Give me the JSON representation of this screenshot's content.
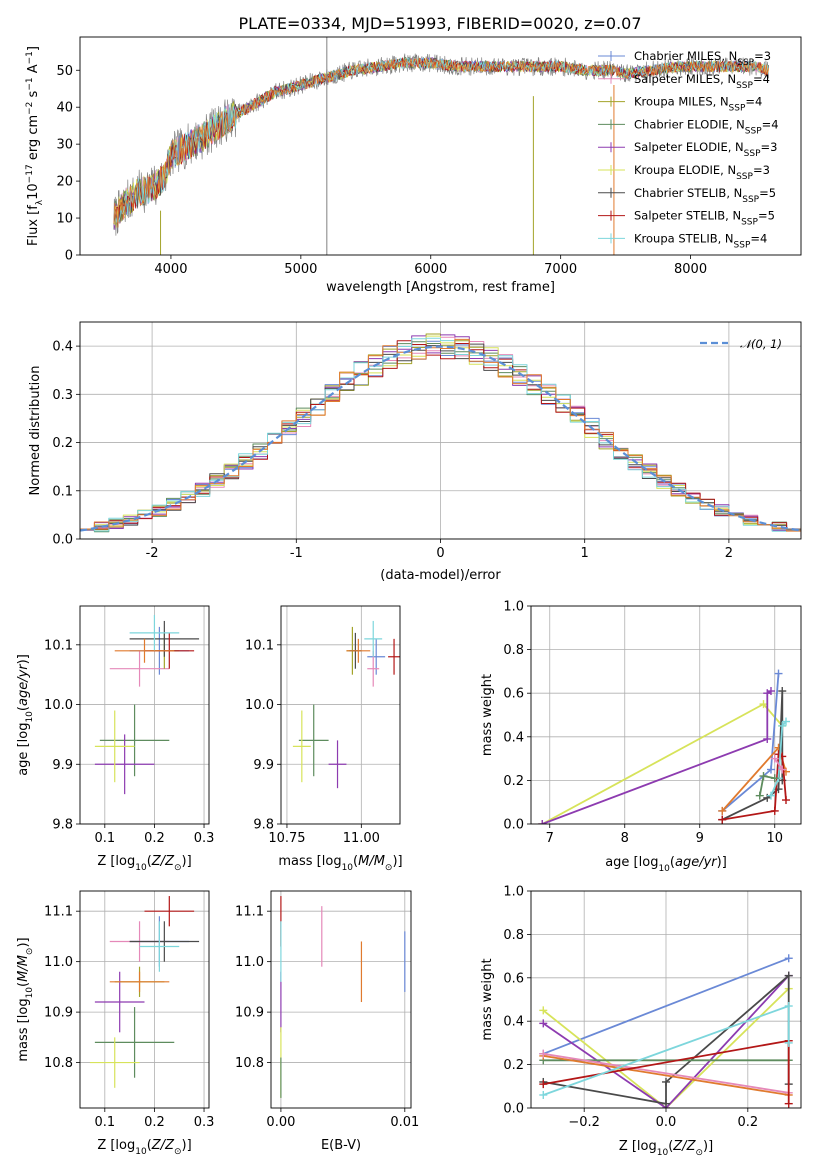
{
  "figure": {
    "title": "PLATE=0334, MJD=51993, FIBERID=0020, z=0.07"
  },
  "colors": {
    "chabrier_miles": "#6a89d6",
    "salpeter_miles": "#e589b9",
    "kroupa_miles": "#a3a32a",
    "chabrier_elodie": "#5e8c5e",
    "salpeter_elodie": "#8d3bb0",
    "kroupa_elodie": "#d7e35a",
    "chabrier_stelib": "#4a4a4a",
    "salpeter_stelib": "#b31717",
    "kroupa_stelib": "#7dd6dc",
    "normal_curve": "#5b8fd6",
    "orange_series": "#e07a2e",
    "grid": "#b0b0b0"
  },
  "chart_data": [
    {
      "id": "spectrum",
      "type": "line",
      "xlabel": "wavelength [Angstrom, rest frame]",
      "ylabel": "Flux [f_λ 10^-17 erg cm^-2 s^-1 A^-1]",
      "xlim": [
        3300,
        8850
      ],
      "ylim": [
        0,
        59
      ],
      "xticks": [
        4000,
        5000,
        6000,
        7000,
        8000
      ],
      "yticks": [
        0,
        10,
        20,
        30,
        40,
        50
      ],
      "grid": false,
      "legend_position": "top-right",
      "series": [
        {
          "name": "Chabrier MILES, N_SSP=3",
          "color": "#6a89d6"
        },
        {
          "name": "Salpeter MILES, N_SSP=4",
          "color": "#e589b9"
        },
        {
          "name": "Kroupa MILES, N_SSP=4",
          "color": "#a3a32a"
        },
        {
          "name": "Chabrier ELODIE, N_SSP=4",
          "color": "#5e8c5e"
        },
        {
          "name": "Salpeter ELODIE, N_SSP=3",
          "color": "#8d3bb0"
        },
        {
          "name": "Kroupa ELODIE, N_SSP=3",
          "color": "#d7e35a"
        },
        {
          "name": "Chabrier STELIB, N_SSP=5",
          "color": "#4a4a4a"
        },
        {
          "name": "Salpeter STELIB, N_SSP=5",
          "color": "#b31717"
        },
        {
          "name": "Kroupa STELIB, N_SSP=4",
          "color": "#7dd6dc"
        }
      ],
      "continuum": [
        [
          3560,
          10
        ],
        [
          3650,
          14
        ],
        [
          3750,
          17
        ],
        [
          3850,
          18
        ],
        [
          3950,
          21
        ],
        [
          4000,
          27
        ],
        [
          4100,
          29
        ],
        [
          4250,
          32
        ],
        [
          4400,
          36
        ],
        [
          4600,
          40
        ],
        [
          4800,
          44
        ],
        [
          5000,
          46
        ],
        [
          5200,
          48
        ],
        [
          5400,
          50
        ],
        [
          5600,
          51
        ],
        [
          5800,
          52
        ],
        [
          6000,
          52
        ],
        [
          6200,
          51
        ],
        [
          6400,
          51
        ],
        [
          6600,
          51
        ],
        [
          6800,
          51
        ],
        [
          7000,
          51
        ],
        [
          7200,
          50
        ],
        [
          7400,
          50
        ],
        [
          7500,
          49
        ],
        [
          7700,
          50
        ],
        [
          7900,
          51
        ],
        [
          8100,
          51
        ],
        [
          8300,
          51
        ],
        [
          8500,
          51
        ],
        [
          8600,
          50
        ]
      ],
      "artifacts": [
        [
          5200,
          0,
          59
        ],
        [
          6790,
          0,
          43
        ],
        [
          7410,
          0,
          46
        ],
        [
          3920,
          0,
          12
        ]
      ]
    },
    {
      "id": "residuals",
      "type": "line",
      "xlabel": "(data-model)/error",
      "ylabel": "Normed distribution",
      "xlim": [
        -2.5,
        2.5
      ],
      "ylim": [
        0,
        0.45
      ],
      "xticks": [
        -2,
        -1,
        0,
        1,
        2
      ],
      "yticks": [
        0.0,
        0.1,
        0.2,
        0.3,
        0.4
      ],
      "grid": true,
      "legend_position": "top-right",
      "normal_label": "𝒩(0, 1)",
      "bin_width": 0.1
    },
    {
      "id": "age_vs_Z",
      "type": "scatter",
      "xlabel": "Z [log10(Z/Z⊙)]",
      "ylabel": "age [log10(age/yr)]",
      "xlim": [
        0.05,
        0.31
      ],
      "ylim": [
        9.8,
        10.165
      ],
      "xticks": [
        0.1,
        0.2,
        0.3
      ],
      "yticks": [
        9.8,
        9.9,
        10.0,
        10.1
      ],
      "grid": true,
      "points": [
        {
          "x": 0.21,
          "y": 10.09,
          "xerr": 0.06,
          "yerr": 0.04,
          "color": "#6a89d6"
        },
        {
          "x": 0.17,
          "y": 10.06,
          "xerr": 0.06,
          "yerr": 0.03,
          "color": "#e589b9"
        },
        {
          "x": 0.22,
          "y": 10.09,
          "xerr": 0.03,
          "yerr": 0.03,
          "color": "#a3a32a"
        },
        {
          "x": 0.16,
          "y": 9.94,
          "xerr": 0.07,
          "yerr": 0.06,
          "color": "#5e8c5e"
        },
        {
          "x": 0.14,
          "y": 9.9,
          "xerr": 0.06,
          "yerr": 0.05,
          "color": "#8d3bb0"
        },
        {
          "x": 0.12,
          "y": 9.93,
          "xerr": 0.04,
          "yerr": 0.06,
          "color": "#d7e35a"
        },
        {
          "x": 0.22,
          "y": 10.11,
          "xerr": 0.07,
          "yerr": 0.03,
          "color": "#4a4a4a"
        },
        {
          "x": 0.23,
          "y": 10.09,
          "xerr": 0.05,
          "yerr": 0.03,
          "color": "#b31717"
        },
        {
          "x": 0.2,
          "y": 10.12,
          "xerr": 0.05,
          "yerr": 0.03,
          "color": "#7dd6dc"
        },
        {
          "x": 0.18,
          "y": 10.09,
          "xerr": 0.06,
          "yerr": 0.02,
          "color": "#e07a2e"
        }
      ]
    },
    {
      "id": "age_vs_mass",
      "type": "scatter",
      "xlabel": "mass [log10(M/M⊙)]",
      "ylabel": "",
      "xlim": [
        10.73,
        11.13
      ],
      "ylim": [
        9.8,
        10.165
      ],
      "xticks": [
        10.75,
        11.0
      ],
      "xticklabels": [
        "10.75",
        "11.00"
      ],
      "yticks": [
        9.8,
        9.9,
        10.0,
        10.1
      ],
      "grid": true,
      "points": [
        {
          "x": 11.05,
          "y": 10.08,
          "xerr": 0.03,
          "yerr": 0.03,
          "color": "#6a89d6"
        },
        {
          "x": 11.04,
          "y": 10.06,
          "xerr": 0.02,
          "yerr": 0.03,
          "color": "#e589b9"
        },
        {
          "x": 10.97,
          "y": 10.09,
          "xerr": 0.02,
          "yerr": 0.04,
          "color": "#a3a32a"
        },
        {
          "x": 10.84,
          "y": 9.94,
          "xerr": 0.05,
          "yerr": 0.06,
          "color": "#5e8c5e"
        },
        {
          "x": 10.92,
          "y": 9.9,
          "xerr": 0.03,
          "yerr": 0.04,
          "color": "#8d3bb0"
        },
        {
          "x": 10.8,
          "y": 9.93,
          "xerr": 0.03,
          "yerr": 0.06,
          "color": "#d7e35a"
        },
        {
          "x": 10.98,
          "y": 10.09,
          "xerr": 0.02,
          "yerr": 0.03,
          "color": "#4a4a4a"
        },
        {
          "x": 11.11,
          "y": 10.08,
          "xerr": 0.02,
          "yerr": 0.03,
          "color": "#b31717"
        },
        {
          "x": 11.04,
          "y": 10.11,
          "xerr": 0.03,
          "yerr": 0.03,
          "color": "#7dd6dc"
        },
        {
          "x": 10.99,
          "y": 10.09,
          "xerr": 0.04,
          "yerr": 0.02,
          "color": "#e07a2e"
        }
      ]
    },
    {
      "id": "weight_vs_age",
      "type": "line",
      "xlabel": "age [log10(age/yr)]",
      "ylabel": "mass weight",
      "xlim": [
        6.75,
        10.35
      ],
      "ylim": [
        0,
        1.0
      ],
      "xticks": [
        7,
        8,
        9,
        10
      ],
      "yticks": [
        0.0,
        0.2,
        0.4,
        0.6,
        0.8,
        1.0
      ],
      "grid": true,
      "series": [
        {
          "color": "#d7e35a",
          "x": [
            6.9,
            9.85,
            10.1
          ],
          "y": [
            0.0,
            0.55,
            0.45
          ]
        },
        {
          "color": "#8d3bb0",
          "x": [
            6.9,
            9.9,
            9.9,
            9.95
          ],
          "y": [
            0.0,
            0.39,
            0.6,
            0.61
          ]
        },
        {
          "color": "#6a89d6",
          "x": [
            9.3,
            9.95,
            10.05
          ],
          "y": [
            0.06,
            0.25,
            0.69
          ]
        },
        {
          "color": "#e07a2e",
          "x": [
            9.3,
            10.05,
            10.15
          ],
          "y": [
            0.06,
            0.35,
            0.24
          ]
        },
        {
          "color": "#4a4a4a",
          "x": [
            9.3,
            9.9,
            10.05,
            10.1,
            10.1
          ],
          "y": [
            0.02,
            0.12,
            0.16,
            0.61,
            0.2
          ]
        },
        {
          "color": "#b31717",
          "x": [
            9.3,
            10.0,
            10.05,
            10.1,
            10.15
          ],
          "y": [
            0.02,
            0.06,
            0.32,
            0.31,
            0.11
          ]
        },
        {
          "color": "#7dd6dc",
          "x": [
            9.95,
            10.05,
            10.1,
            10.15
          ],
          "y": [
            0.13,
            0.21,
            0.45,
            0.47
          ]
        },
        {
          "color": "#5e8c5e",
          "x": [
            9.8,
            9.85,
            10.0
          ],
          "y": [
            0.13,
            0.22,
            0.21
          ]
        },
        {
          "color": "#e589b9",
          "x": [
            10.0,
            10.1
          ],
          "y": [
            0.3,
            0.25
          ]
        }
      ]
    },
    {
      "id": "mass_vs_Z",
      "type": "scatter",
      "xlabel": "Z [log10(Z/Z⊙)]",
      "ylabel": "mass [log10(M/M⊙)]",
      "xlim": [
        0.05,
        0.31
      ],
      "ylim": [
        10.71,
        11.14
      ],
      "xticks": [
        0.1,
        0.2,
        0.3
      ],
      "yticks": [
        10.8,
        10.9,
        11.0,
        11.1
      ],
      "grid": true,
      "points": [
        {
          "x": 0.21,
          "y": 11.04,
          "xerr": 0.06,
          "yerr": 0.05,
          "color": "#6a89d6"
        },
        {
          "x": 0.17,
          "y": 11.04,
          "xerr": 0.06,
          "yerr": 0.04,
          "color": "#e589b9"
        },
        {
          "x": 0.17,
          "y": 10.96,
          "xerr": 0.05,
          "yerr": 0.03,
          "color": "#a3a32a"
        },
        {
          "x": 0.16,
          "y": 10.84,
          "xerr": 0.08,
          "yerr": 0.07,
          "color": "#5e8c5e"
        },
        {
          "x": 0.13,
          "y": 10.92,
          "xerr": 0.05,
          "yerr": 0.06,
          "color": "#8d3bb0"
        },
        {
          "x": 0.12,
          "y": 10.8,
          "xerr": 0.05,
          "yerr": 0.05,
          "color": "#d7e35a"
        },
        {
          "x": 0.22,
          "y": 11.04,
          "xerr": 0.07,
          "yerr": 0.04,
          "color": "#4a4a4a"
        },
        {
          "x": 0.23,
          "y": 11.1,
          "xerr": 0.05,
          "yerr": 0.03,
          "color": "#b31717"
        },
        {
          "x": 0.21,
          "y": 11.03,
          "xerr": 0.04,
          "yerr": 0.05,
          "color": "#7dd6dc"
        },
        {
          "x": 0.17,
          "y": 10.96,
          "xerr": 0.06,
          "yerr": 0.02,
          "color": "#e07a2e"
        }
      ]
    },
    {
      "id": "mass_vs_ebv",
      "type": "scatter",
      "xlabel": "E(B-V)",
      "ylabel": "",
      "xlim": [
        -0.0008,
        0.0105
      ],
      "ylim": [
        10.71,
        11.14
      ],
      "xticks": [
        0.0,
        0.01
      ],
      "xticklabels": [
        "0.00",
        "0.01"
      ],
      "yticks": [
        10.8,
        10.9,
        11.0,
        11.1
      ],
      "grid": true,
      "points": [
        {
          "x": 0.01,
          "y": 11.0,
          "xerr": 0,
          "yerr": 0.06,
          "color": "#6a89d6"
        },
        {
          "x": 0.0033,
          "y": 11.05,
          "xerr": 0,
          "yerr": 0.06,
          "color": "#e589b9"
        },
        {
          "x": 0.0065,
          "y": 10.98,
          "xerr": 0,
          "yerr": 0.06,
          "color": "#e07a2e"
        },
        {
          "x": 0.0,
          "y": 11.08,
          "xerr": 0,
          "yerr": 0.05,
          "color": "#b31717"
        },
        {
          "x": 0.0,
          "y": 10.92,
          "xerr": 0,
          "yerr": 0.06,
          "color": "#8d3bb0"
        },
        {
          "x": 0.0,
          "y": 10.8,
          "xerr": 0,
          "yerr": 0.07,
          "color": "#d7e35a"
        },
        {
          "x": 0.0,
          "y": 10.77,
          "xerr": 0,
          "yerr": 0.04,
          "color": "#5e8c5e"
        },
        {
          "x": 0.0,
          "y": 11.02,
          "xerr": 0,
          "yerr": 0.06,
          "color": "#7dd6dc"
        }
      ]
    },
    {
      "id": "weight_vs_Z",
      "type": "line",
      "xlabel": "Z [log10(Z/Z⊙)]",
      "ylabel": "mass weight",
      "xlim": [
        -0.33,
        0.33
      ],
      "ylim": [
        0,
        1.0
      ],
      "xticks": [
        -0.2,
        0.0,
        0.2
      ],
      "xticklabels": [
        "−0.2",
        "0.0",
        "0.2"
      ],
      "yticks": [
        0.0,
        0.2,
        0.4,
        0.6,
        0.8,
        1.0
      ],
      "grid": true,
      "series": [
        {
          "color": "#6a89d6",
          "x": [
            -0.3,
            0.3
          ],
          "y": [
            0.25,
            0.69
          ]
        },
        {
          "color": "#d7e35a",
          "x": [
            -0.3,
            0.0,
            0.3
          ],
          "y": [
            0.45,
            0.0,
            0.55
          ]
        },
        {
          "color": "#8d3bb0",
          "x": [
            -0.3,
            0.0,
            0.3
          ],
          "y": [
            0.39,
            0.0,
            0.61
          ]
        },
        {
          "color": "#4a4a4a",
          "x": [
            -0.3,
            0.0,
            0.0,
            0.3,
            0.3
          ],
          "y": [
            0.12,
            0.02,
            0.12,
            0.61,
            0.11
          ]
        },
        {
          "color": "#5e8c5e",
          "x": [
            -0.3,
            0.3
          ],
          "y": [
            0.22,
            0.22
          ]
        },
        {
          "color": "#e07a2e",
          "x": [
            -0.3,
            0.3
          ],
          "y": [
            0.24,
            0.06
          ]
        },
        {
          "color": "#e589b9",
          "x": [
            -0.3,
            0.3
          ],
          "y": [
            0.25,
            0.07
          ]
        },
        {
          "color": "#b31717",
          "x": [
            -0.3,
            0.3,
            0.3
          ],
          "y": [
            0.11,
            0.31,
            0.02
          ]
        },
        {
          "color": "#7dd6dc",
          "x": [
            -0.3,
            0.3,
            0.3
          ],
          "y": [
            0.06,
            0.47,
            0.3
          ]
        }
      ]
    }
  ]
}
